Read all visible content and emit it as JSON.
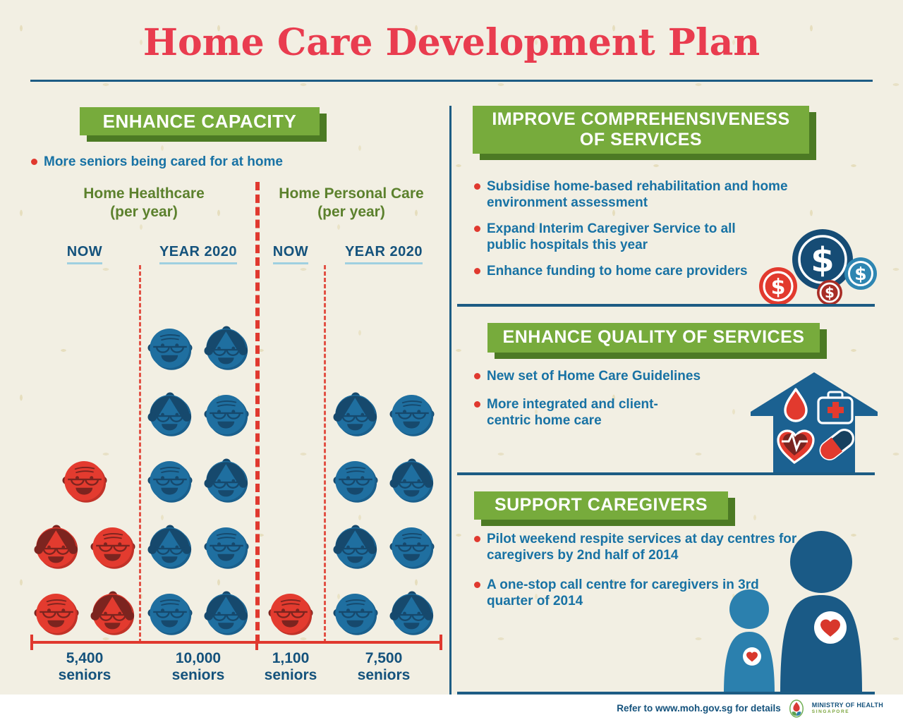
{
  "title": "Home Care Development Plan",
  "sections": {
    "enhance_capacity": {
      "heading": "ENHANCE CAPACITY",
      "bullets": [
        "More seniors being cared for at home"
      ]
    },
    "improve": {
      "heading": "IMPROVE COMPREHENSIVENESS OF SERVICES",
      "bullets": [
        "Subsidise home-based rehabilitation and home environment assessment",
        "Expand Interim Caregiver Service to all public hospitals this year",
        "Enhance funding to home care providers"
      ]
    },
    "quality": {
      "heading": "ENHANCE QUALITY OF SERVICES",
      "bullets": [
        "New set of Home Care Guidelines",
        "More integrated and client-centric home care"
      ]
    },
    "caregivers": {
      "heading": "SUPPORT CAREGIVERS",
      "bullets": [
        "Pilot weekend respite services at day centres for caregivers by 2nd half of 2014",
        "A one-stop call centre for caregivers in 3rd quarter of 2014"
      ]
    }
  },
  "chart_data": {
    "type": "pictogram",
    "title": "ENHANCE CAPACITY",
    "note": "One face icon represents roughly 1,000 seniors; red = now, blue = year 2020",
    "groups": [
      {
        "label": "Home Healthcare",
        "sublabel": "(per year)",
        "columns": [
          {
            "label": "NOW",
            "value": "5,400",
            "unit": "seniors",
            "value_num": 5400,
            "count": 5,
            "color": "red",
            "rows": [
              [
                "man"
              ],
              [
                "woman",
                "man"
              ],
              [
                "man",
                "woman"
              ]
            ]
          },
          {
            "label": "YEAR 2020",
            "value": "10,000",
            "unit": "seniors",
            "value_num": 10000,
            "count": 10,
            "color": "blue",
            "rows": [
              [
                "man",
                "woman"
              ],
              [
                "woman",
                "man"
              ],
              [
                "man",
                "woman"
              ],
              [
                "woman",
                "man"
              ],
              [
                "man",
                "woman"
              ]
            ]
          }
        ]
      },
      {
        "label": "Home Personal Care",
        "sublabel": "(per year)",
        "columns": [
          {
            "label": "NOW",
            "value": "1,100",
            "unit": "seniors",
            "value_num": 1100,
            "count": 1,
            "color": "red",
            "rows": [
              [
                "man"
              ]
            ]
          },
          {
            "label": "YEAR 2020",
            "value": "7,500",
            "unit": "seniors",
            "value_num": 7500,
            "count": 8,
            "color": "blue",
            "rows": [
              [
                "woman",
                "man"
              ],
              [
                "man",
                "woman"
              ],
              [
                "woman",
                "man"
              ],
              [
                "man",
                "woman"
              ]
            ]
          }
        ]
      }
    ]
  },
  "icons": {
    "dollar_symbol": "$",
    "names": [
      "dollar-coins-icon",
      "medical-house-icon",
      "blood-drop-icon",
      "first-aid-kit-icon",
      "heart-pulse-icon",
      "pill-icon",
      "caregiver-figures-icon",
      "heart-badge-icon",
      "senior-man-face-icon",
      "senior-woman-face-icon",
      "ministry-of-health-logo"
    ]
  },
  "footer": {
    "note": "Refer to www.moh.gov.sg for details",
    "ministry_line1": "MINISTRY OF HEALTH",
    "ministry_line2": "SINGAPORE"
  },
  "colors": {
    "background": "#f2efe3",
    "title_red": "#e93c4f",
    "banner_green": "#77ab3c",
    "banner_green_shadow": "#4c7a24",
    "header_olive": "#5c812d",
    "body_blue": "#1872a4",
    "navy": "#14527c",
    "divider_blue": "#1d5c84",
    "accent_red": "#e0392f",
    "face_blue": "#1f6fa0",
    "face_red": "#e33b2f"
  }
}
